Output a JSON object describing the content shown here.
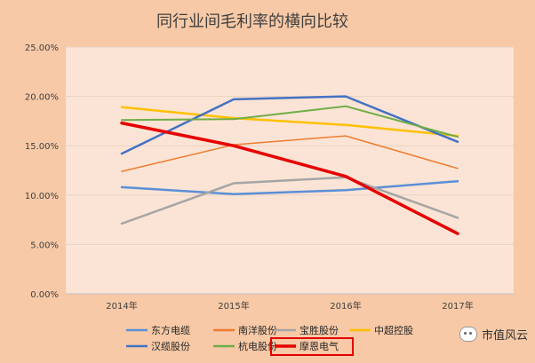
{
  "chart_data": {
    "type": "line",
    "title": "同行业间毛利率的横向比较",
    "categories": [
      "2014年",
      "2015年",
      "2016年",
      "2017年"
    ],
    "yticks": [
      "0.00%",
      "5.00%",
      "10.00%",
      "15.00%",
      "20.00%",
      "25.00%"
    ],
    "ylim": [
      0,
      25
    ],
    "grid": true,
    "legend_position": "bottom",
    "series": [
      {
        "name": "东方电缆",
        "values": [
          10.8,
          10.1,
          10.5,
          11.4
        ],
        "color": "#5b8fd6",
        "width": 2.5
      },
      {
        "name": "南洋股份",
        "values": [
          12.4,
          15.1,
          16.0,
          12.7
        ],
        "color": "#ed7d31",
        "width": 1.5
      },
      {
        "name": "宝胜股份",
        "values": [
          7.1,
          11.2,
          11.8,
          7.7
        ],
        "color": "#a5a5a5",
        "width": 2.5
      },
      {
        "name": "中超控股",
        "values": [
          18.9,
          17.8,
          17.1,
          16.0
        ],
        "color": "#ffc000",
        "width": 2.5
      },
      {
        "name": "汉缆股份",
        "values": [
          14.2,
          19.7,
          20.0,
          15.4
        ],
        "color": "#4472c4",
        "width": 2.5
      },
      {
        "name": "杭电股份",
        "values": [
          17.6,
          17.7,
          19.0,
          15.9
        ],
        "color": "#70ad47",
        "width": 2
      },
      {
        "name": "摩恩电气",
        "values": [
          17.3,
          15.0,
          11.9,
          6.1
        ],
        "color": "#e60000",
        "width": 3.5,
        "highlight": true
      }
    ]
  },
  "watermark": {
    "text": "市值风云",
    "icon": "wechat-icon"
  }
}
